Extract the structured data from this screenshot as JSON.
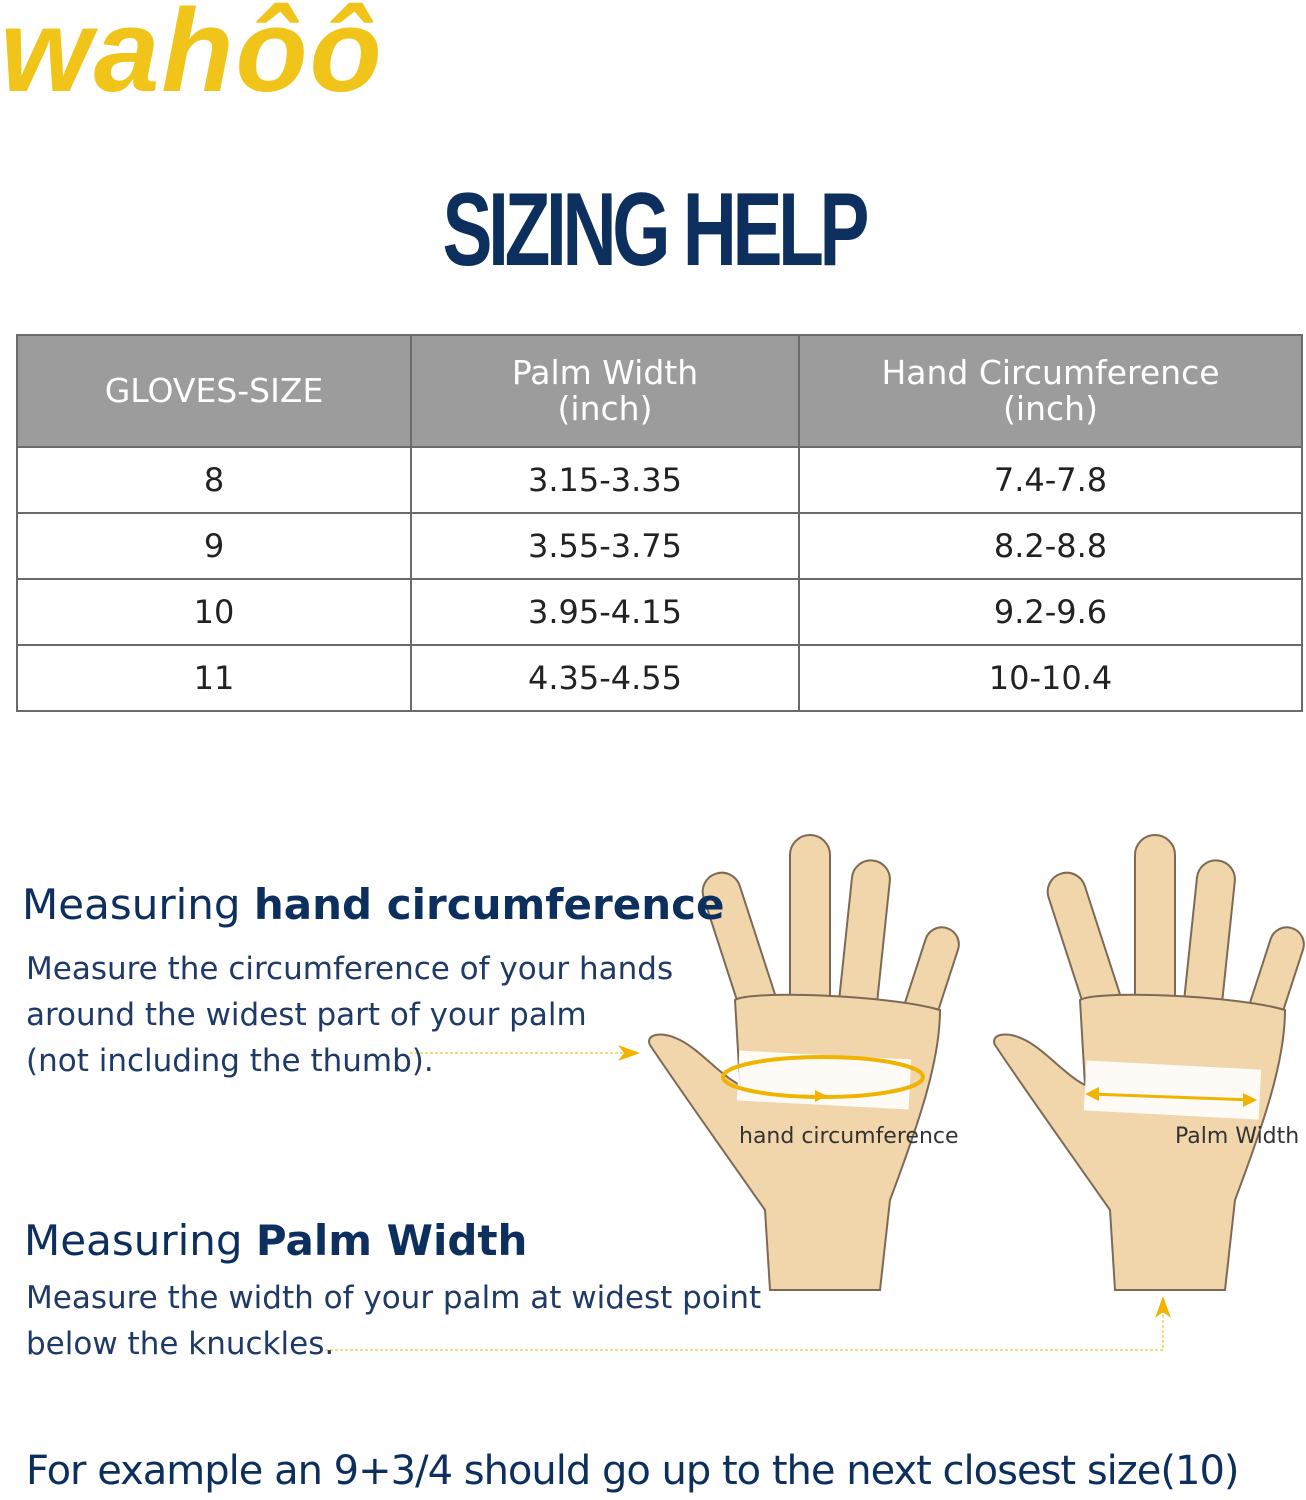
{
  "logo": {
    "text": "wahôô",
    "color": "#f0c419"
  },
  "title": "SIZING HELP",
  "table": {
    "headers": [
      {
        "line1": "GLOVES-SIZE",
        "line2": ""
      },
      {
        "line1": "Palm Width",
        "line2": "(inch)"
      },
      {
        "line1": "Hand Circumference",
        "line2": "(inch)"
      }
    ],
    "rows": [
      [
        "8",
        "3.15-3.35",
        "7.4-7.8"
      ],
      [
        "9",
        "3.55-3.75",
        "8.2-8.8"
      ],
      [
        "10",
        "3.95-4.15",
        "9.2-9.6"
      ],
      [
        "11",
        "4.35-4.55",
        "10-10.4"
      ]
    ]
  },
  "circumference": {
    "heading_plain": "Measuring ",
    "heading_bold": "hand circumference",
    "lines": [
      "Measure the circumference of your hands",
      "around the widest part of your palm",
      "(not including the thumb)."
    ],
    "diagram_label": "hand circumference"
  },
  "palm": {
    "heading_plain": "Measuring ",
    "heading_bold": "Palm Width",
    "lines": [
      "Measure the width of your palm at widest point",
      "below the knuckles."
    ],
    "diagram_label": "Palm Width"
  },
  "note": "For example an 9+3/4 should go up to the next closest size(10)",
  "colors": {
    "navy": "#0d2f5e",
    "header_gray": "#9c9c9c",
    "accent_yellow": "#f0c419",
    "skin": "#f1d5ab"
  }
}
